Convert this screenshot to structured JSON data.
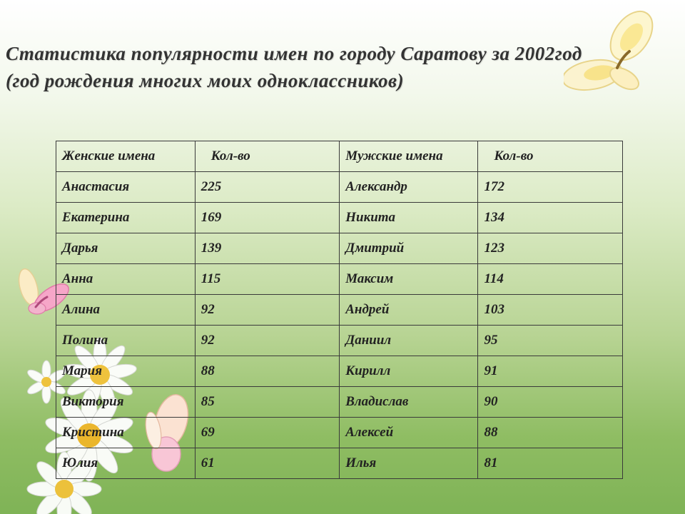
{
  "slide": {
    "title_line1": "Статистика популярности имен по городу Саратову за 2002год",
    "title_line2": "(год рождения многих моих одноклассников)"
  },
  "table": {
    "headers": [
      "Женские имена",
      "Кол-во",
      "Мужские имена",
      "Кол-во"
    ],
    "rows": [
      [
        "Анастасия",
        "225",
        "Александр",
        "172"
      ],
      [
        "Екатерина",
        "169",
        "Никита",
        "134"
      ],
      [
        "Дарья",
        "139",
        "Дмитрий",
        "123"
      ],
      [
        "Анна",
        "115",
        "Максим",
        "114"
      ],
      [
        "Алина",
        "92",
        "Андрей",
        "103"
      ],
      [
        "Полина",
        "92",
        "Даниил",
        "95"
      ],
      [
        "Мария",
        "88",
        "Кирилл",
        "91"
      ],
      [
        "Виктория",
        "85",
        "Владислав",
        "90"
      ],
      [
        "Кристина",
        "69",
        "Алексей",
        "88"
      ],
      [
        "Юлия",
        "61",
        "Илья",
        "81"
      ]
    ]
  },
  "decorations": {
    "top_right": "butterfly-yellow",
    "left": "butterfly-pink",
    "bottom_left": "daisy-flowers",
    "bottom_center": "butterfly-peach"
  }
}
